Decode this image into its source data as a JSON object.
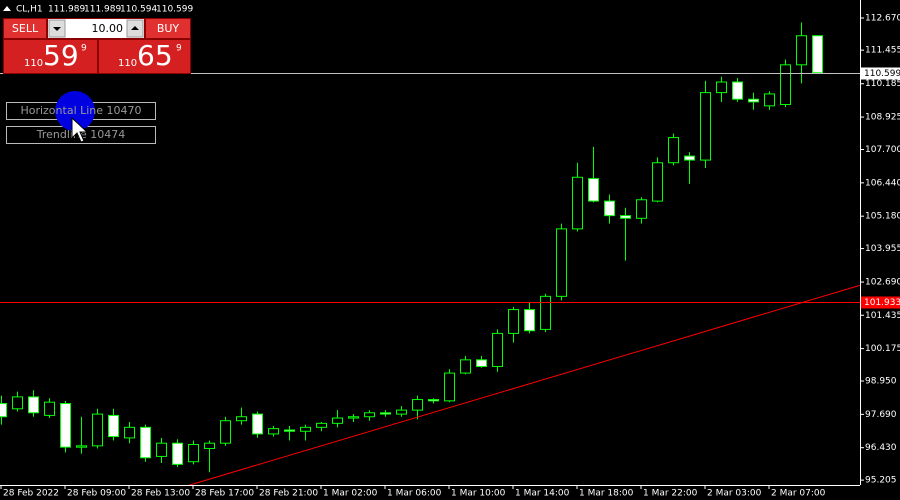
{
  "info": {
    "symbol": "CL,H1",
    "ohlc": [
      111.989,
      111.989,
      110.594,
      110.599
    ]
  },
  "trade_panel": {
    "sell": "SELL",
    "buy": "BUY",
    "volume": "10.00",
    "bid": {
      "big": "110",
      "main": "59",
      "small": "9"
    },
    "ask": {
      "big": "110",
      "main": "65",
      "small": "9"
    }
  },
  "objects": [
    "Horizontal Line 10470",
    "Trendline 10474"
  ],
  "chart_data": {
    "type": "candlestick",
    "categories": [
      "28 Feb 2022",
      null,
      null,
      null,
      "28 Feb 09:00",
      null,
      null,
      null,
      "28 Feb 13:00",
      null,
      null,
      null,
      "28 Feb 17:00",
      null,
      null,
      null,
      "28 Feb 21:00",
      null,
      null,
      null,
      "1 Mar 02:00",
      null,
      null,
      null,
      "1 Mar 06:00",
      null,
      null,
      null,
      "1 Mar 10:00",
      null,
      null,
      null,
      "1 Mar 14:00",
      null,
      null,
      null,
      "1 Mar 18:00",
      null,
      null,
      null,
      "1 Mar 22:00",
      null,
      null,
      null,
      "2 Mar 03:00",
      null,
      null,
      null,
      "2 Mar 07:00",
      null,
      null,
      null
    ],
    "open": [
      98.1,
      97.9,
      98.35,
      97.65,
      98.1,
      96.45,
      96.5,
      97.65,
      96.8,
      97.2,
      96.1,
      96.6,
      95.9,
      96.4,
      96.6,
      97.45,
      97.7,
      96.95,
      97.1,
      97.05,
      97.2,
      97.35,
      97.55,
      97.6,
      97.75,
      97.7,
      97.85,
      98.25,
      98.2,
      99.25,
      99.75,
      99.5,
      100.75,
      101.65,
      100.9,
      102.15,
      104.7,
      106.6,
      105.75,
      105.2,
      105.1,
      105.75,
      107.2,
      107.45,
      107.3,
      109.85,
      110.25,
      109.6,
      109.35,
      109.4,
      110.9,
      112.0
    ],
    "high": [
      98.4,
      98.55,
      98.6,
      98.3,
      98.2,
      97.6,
      97.9,
      97.9,
      97.4,
      97.3,
      96.8,
      96.75,
      96.7,
      96.7,
      97.6,
      97.95,
      97.8,
      97.25,
      97.25,
      97.3,
      97.4,
      97.85,
      97.7,
      97.85,
      97.85,
      98.0,
      98.4,
      98.3,
      99.4,
      99.9,
      99.9,
      100.9,
      101.75,
      101.9,
      102.25,
      104.9,
      107.2,
      107.8,
      106.0,
      105.5,
      105.9,
      107.4,
      108.3,
      107.6,
      110.3,
      110.45,
      110.4,
      109.85,
      109.9,
      111.1,
      112.5,
      112.0
    ],
    "low": [
      97.3,
      97.8,
      97.6,
      97.55,
      96.25,
      96.2,
      96.4,
      96.7,
      96.6,
      95.9,
      95.85,
      95.7,
      95.8,
      95.5,
      96.5,
      97.3,
      96.8,
      96.85,
      96.7,
      96.7,
      97.05,
      97.2,
      97.4,
      97.45,
      97.6,
      97.6,
      97.5,
      98.1,
      98.15,
      99.2,
      99.45,
      99.3,
      100.4,
      100.75,
      100.8,
      102.0,
      104.6,
      105.7,
      104.9,
      103.5,
      104.9,
      105.7,
      107.1,
      106.4,
      107.0,
      109.5,
      109.5,
      109.2,
      109.2,
      109.3,
      110.2,
      110.6
    ],
    "close": [
      97.6,
      98.35,
      97.75,
      98.15,
      96.45,
      96.5,
      97.7,
      96.85,
      97.2,
      96.05,
      96.6,
      95.8,
      96.55,
      96.6,
      97.45,
      97.6,
      96.95,
      97.15,
      97.05,
      97.2,
      97.35,
      97.55,
      97.6,
      97.75,
      97.7,
      97.85,
      98.25,
      98.2,
      99.25,
      99.75,
      99.5,
      100.75,
      101.65,
      100.85,
      102.15,
      104.7,
      106.65,
      105.75,
      105.2,
      105.1,
      105.8,
      107.2,
      108.15,
      107.3,
      109.85,
      110.25,
      109.6,
      109.5,
      109.8,
      110.9,
      112.0,
      110.6
    ],
    "color": "#00ff00",
    "ylim": [
      95.02,
      113.35
    ],
    "yticks": [
      {
        "value": 112.67,
        "label": "112.670"
      },
      111.455,
      110.185,
      108.925,
      {
        "value": 107.7,
        "label": "107.700"
      },
      {
        "value": 106.44,
        "label": "106.440"
      },
      {
        "value": 105.18,
        "label": "105.180"
      },
      103.955,
      {
        "value": 102.69,
        "label": "102.690"
      },
      101.435,
      100.175,
      {
        "value": 98.95,
        "label": "98.950"
      },
      {
        "value": 97.69,
        "label": "97.690"
      },
      {
        "value": 96.43,
        "label": "96.430"
      },
      95.205
    ],
    "price_lines": [
      {
        "value": 110.599,
        "color": "#c0c0c0"
      },
      {
        "value": 101.933,
        "color": "#ff0000"
      }
    ],
    "trendline": {
      "x": [
        11.8,
        53.7
      ],
      "y": [
        95.02,
        102.57
      ],
      "color": "#ff0000"
    }
  }
}
